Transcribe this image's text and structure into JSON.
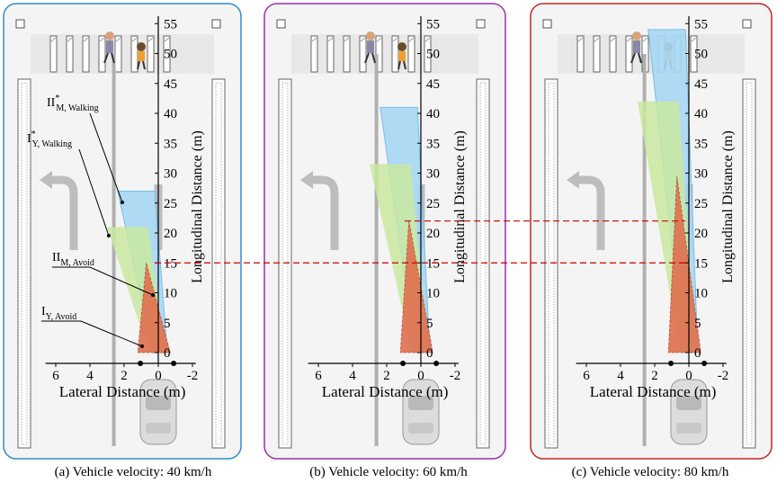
{
  "colors": {
    "panel_a": "#2e8bd0",
    "panel_b": "#9a2fb0",
    "panel_c": "#c0282a",
    "region_walking_M": "#a8d8f4",
    "region_walking_Y": "#c9e8a0",
    "region_avoid": "#e07050",
    "guide_line": "#cc0000"
  },
  "panels": [
    {
      "key": "a",
      "caption": "(a) Vehicle velocity: 40 km/h",
      "walking_M_range": [
        0,
        27
      ],
      "walking_Y_range": [
        0,
        21
      ],
      "avoid_range": [
        0,
        15
      ],
      "show_labels": true
    },
    {
      "key": "b",
      "caption": "(b) Vehicle velocity: 60 km/h",
      "walking_M_range": [
        0,
        41
      ],
      "walking_Y_range": [
        0,
        31.5
      ],
      "avoid_range": [
        0,
        22
      ],
      "show_labels": false
    },
    {
      "key": "c",
      "caption": "(c) Vehicle velocity: 80 km/h",
      "walking_M_range": [
        0,
        54
      ],
      "walking_Y_range": [
        0,
        42
      ],
      "avoid_range": [
        0,
        29.5
      ],
      "show_labels": false
    }
  ],
  "axes": {
    "y_label": "Longitudinal Distance (m)",
    "x_label": "Lateral Distance (m)",
    "y_ticks": [
      "0",
      "5",
      "10",
      "15",
      "20",
      "25",
      "30",
      "35",
      "40",
      "45",
      "50",
      "55"
    ],
    "x_ticks": [
      "6",
      "4",
      "2",
      "0",
      "-2"
    ]
  },
  "labels": {
    "II_M_walking": "II",
    "II_M_walking_sub": "M, Walking",
    "I_Y_walking": "I",
    "I_Y_walking_sub": "Y, Walking",
    "II_M_avoid": "II",
    "II_M_avoid_sub": "M, Avoid",
    "I_Y_avoid": "I",
    "I_Y_avoid_sub": "Y, Avoid",
    "star": "*"
  },
  "guide_lines": [
    15,
    22
  ]
}
